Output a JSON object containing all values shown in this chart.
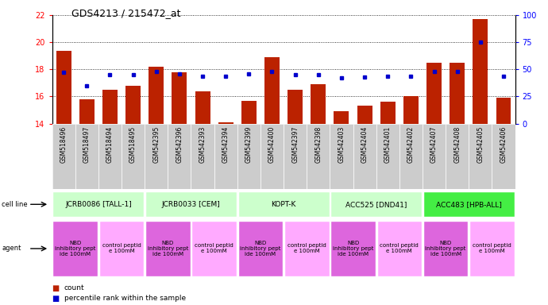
{
  "title": "GDS4213 / 215472_at",
  "samples": [
    "GSM518496",
    "GSM518497",
    "GSM518494",
    "GSM518495",
    "GSM542395",
    "GSM542396",
    "GSM542393",
    "GSM542394",
    "GSM542399",
    "GSM542400",
    "GSM542397",
    "GSM542398",
    "GSM542403",
    "GSM542404",
    "GSM542401",
    "GSM542402",
    "GSM542407",
    "GSM542408",
    "GSM542405",
    "GSM542406"
  ],
  "counts": [
    19.4,
    15.8,
    16.5,
    16.8,
    18.2,
    17.8,
    16.4,
    14.1,
    15.7,
    18.9,
    16.5,
    16.9,
    14.9,
    15.3,
    15.6,
    16.0,
    18.5,
    18.5,
    21.7,
    15.9
  ],
  "percentiles": [
    47,
    35,
    45,
    45,
    48,
    46,
    44,
    44,
    46,
    48,
    45,
    45,
    42,
    43,
    44,
    44,
    48,
    48,
    75,
    44
  ],
  "cell_lines": [
    {
      "label": "JCRB0086 [TALL-1]",
      "start": 0,
      "end": 4,
      "color": "#ccffcc"
    },
    {
      "label": "JCRB0033 [CEM]",
      "start": 4,
      "end": 8,
      "color": "#ccffcc"
    },
    {
      "label": "KOPT-K",
      "start": 8,
      "end": 12,
      "color": "#ccffcc"
    },
    {
      "label": "ACC525 [DND41]",
      "start": 12,
      "end": 16,
      "color": "#ccffcc"
    },
    {
      "label": "ACC483 [HPB-ALL]",
      "start": 16,
      "end": 20,
      "color": "#44ee44"
    }
  ],
  "agents": [
    {
      "label": "NBD\ninhibitory pept\nide 100mM",
      "start": 0,
      "end": 2,
      "color": "#dd66dd"
    },
    {
      "label": "control peptid\ne 100mM",
      "start": 2,
      "end": 4,
      "color": "#ffaaff"
    },
    {
      "label": "NBD\ninhibitory pept\nide 100mM",
      "start": 4,
      "end": 6,
      "color": "#dd66dd"
    },
    {
      "label": "control peptid\ne 100mM",
      "start": 6,
      "end": 8,
      "color": "#ffaaff"
    },
    {
      "label": "NBD\ninhibitory pept\nide 100mM",
      "start": 8,
      "end": 10,
      "color": "#dd66dd"
    },
    {
      "label": "control peptid\ne 100mM",
      "start": 10,
      "end": 12,
      "color": "#ffaaff"
    },
    {
      "label": "NBD\ninhibitory pept\nide 100mM",
      "start": 12,
      "end": 14,
      "color": "#dd66dd"
    },
    {
      "label": "control peptid\ne 100mM",
      "start": 14,
      "end": 16,
      "color": "#ffaaff"
    },
    {
      "label": "NBD\ninhibitory pept\nide 100mM",
      "start": 16,
      "end": 18,
      "color": "#dd66dd"
    },
    {
      "label": "control peptid\ne 100mM",
      "start": 18,
      "end": 20,
      "color": "#ffaaff"
    }
  ],
  "ylim_left": [
    14,
    22
  ],
  "ylim_right": [
    0,
    100
  ],
  "yticks_left": [
    14,
    16,
    18,
    20,
    22
  ],
  "yticks_right": [
    0,
    25,
    50,
    75,
    100
  ],
  "bar_color": "#bb2200",
  "dot_color": "#0000cc",
  "background_color": "#ffffff",
  "sample_bg": "#cccccc",
  "legend_count_color": "#bb2200",
  "legend_pct_color": "#0000cc"
}
